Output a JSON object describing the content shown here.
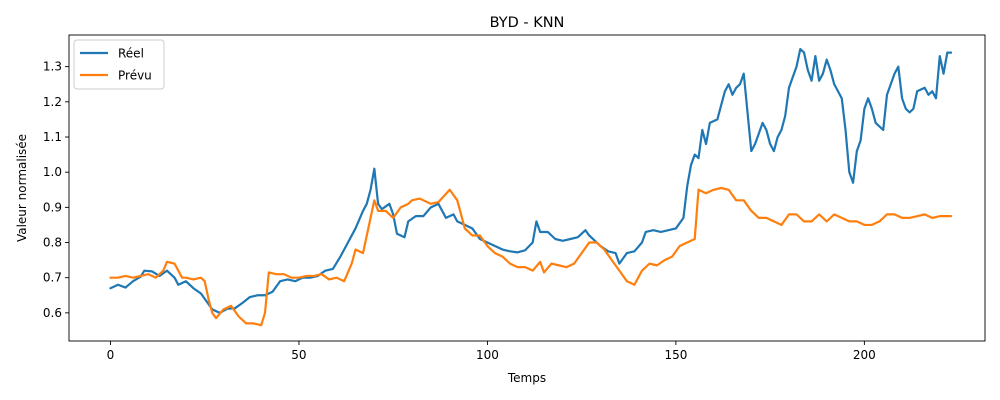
{
  "chart_data": {
    "type": "line",
    "title": "BYD - KNN",
    "xlabel": "Temps",
    "ylabel": "Valeur normalisée",
    "xlim": [
      -11,
      232
    ],
    "ylim": [
      0.52,
      1.39
    ],
    "xticks": [
      0,
      50,
      100,
      150,
      200
    ],
    "yticks": [
      0.6,
      0.7,
      0.8,
      0.9,
      1.0,
      1.1,
      1.2,
      1.3
    ],
    "ytick_labels": [
      "0.6",
      "0.7",
      "0.8",
      "0.9",
      "1.0",
      "1.1",
      "1.2",
      "1.3"
    ],
    "grid": false,
    "legend_position": "upper left",
    "series": [
      {
        "name": "Réel",
        "color": "#1f77b4",
        "points": [
          [
            0,
            0.67
          ],
          [
            2,
            0.68
          ],
          [
            4,
            0.672
          ],
          [
            6,
            0.69
          ],
          [
            8,
            0.703
          ],
          [
            9,
            0.72
          ],
          [
            11,
            0.718
          ],
          [
            13,
            0.705
          ],
          [
            15,
            0.72
          ],
          [
            17,
            0.7
          ],
          [
            18,
            0.68
          ],
          [
            20,
            0.69
          ],
          [
            22,
            0.67
          ],
          [
            24,
            0.655
          ],
          [
            25,
            0.64
          ],
          [
            27,
            0.61
          ],
          [
            29,
            0.6
          ],
          [
            31,
            0.612
          ],
          [
            33,
            0.613
          ],
          [
            35,
            0.628
          ],
          [
            37,
            0.645
          ],
          [
            39,
            0.65
          ],
          [
            41,
            0.65
          ],
          [
            43,
            0.66
          ],
          [
            45,
            0.69
          ],
          [
            47,
            0.695
          ],
          [
            49,
            0.69
          ],
          [
            51,
            0.7
          ],
          [
            53,
            0.7
          ],
          [
            55,
            0.705
          ],
          [
            57,
            0.72
          ],
          [
            59,
            0.725
          ],
          [
            61,
            0.76
          ],
          [
            63,
            0.8
          ],
          [
            65,
            0.84
          ],
          [
            67,
            0.89
          ],
          [
            68,
            0.91
          ],
          [
            69,
            0.95
          ],
          [
            70,
            1.01
          ],
          [
            71,
            0.91
          ],
          [
            72,
            0.895
          ],
          [
            74,
            0.91
          ],
          [
            75,
            0.88
          ],
          [
            76,
            0.825
          ],
          [
            78,
            0.815
          ],
          [
            79,
            0.86
          ],
          [
            81,
            0.875
          ],
          [
            83,
            0.875
          ],
          [
            85,
            0.9
          ],
          [
            87,
            0.91
          ],
          [
            89,
            0.87
          ],
          [
            91,
            0.88
          ],
          [
            92,
            0.86
          ],
          [
            94,
            0.85
          ],
          [
            96,
            0.84
          ],
          [
            98,
            0.81
          ],
          [
            100,
            0.8
          ],
          [
            102,
            0.79
          ],
          [
            104,
            0.78
          ],
          [
            106,
            0.775
          ],
          [
            108,
            0.772
          ],
          [
            110,
            0.778
          ],
          [
            112,
            0.8
          ],
          [
            113,
            0.86
          ],
          [
            114,
            0.83
          ],
          [
            116,
            0.83
          ],
          [
            118,
            0.81
          ],
          [
            120,
            0.805
          ],
          [
            122,
            0.81
          ],
          [
            124,
            0.815
          ],
          [
            126,
            0.835
          ],
          [
            127,
            0.82
          ],
          [
            129,
            0.8
          ],
          [
            130,
            0.79
          ],
          [
            132,
            0.775
          ],
          [
            134,
            0.77
          ],
          [
            135,
            0.74
          ],
          [
            137,
            0.77
          ],
          [
            139,
            0.775
          ],
          [
            141,
            0.8
          ],
          [
            142,
            0.83
          ],
          [
            144,
            0.835
          ],
          [
            146,
            0.83
          ],
          [
            148,
            0.835
          ],
          [
            150,
            0.84
          ],
          [
            152,
            0.87
          ],
          [
            153,
            0.96
          ],
          [
            154,
            1.02
          ],
          [
            155,
            1.05
          ],
          [
            156,
            1.04
          ],
          [
            157,
            1.12
          ],
          [
            158,
            1.08
          ],
          [
            159,
            1.14
          ],
          [
            161,
            1.15
          ],
          [
            162,
            1.19
          ],
          [
            163,
            1.23
          ],
          [
            164,
            1.25
          ],
          [
            165,
            1.22
          ],
          [
            166,
            1.24
          ],
          [
            167,
            1.25
          ],
          [
            168,
            1.28
          ],
          [
            170,
            1.06
          ],
          [
            171,
            1.08
          ],
          [
            172,
            1.11
          ],
          [
            173,
            1.14
          ],
          [
            174,
            1.12
          ],
          [
            175,
            1.08
          ],
          [
            176,
            1.06
          ],
          [
            177,
            1.1
          ],
          [
            178,
            1.12
          ],
          [
            179,
            1.16
          ],
          [
            180,
            1.24
          ],
          [
            182,
            1.3
          ],
          [
            183,
            1.35
          ],
          [
            184,
            1.34
          ],
          [
            185,
            1.29
          ],
          [
            186,
            1.26
          ],
          [
            187,
            1.33
          ],
          [
            188,
            1.26
          ],
          [
            189,
            1.28
          ],
          [
            190,
            1.32
          ],
          [
            191,
            1.29
          ],
          [
            192,
            1.25
          ],
          [
            193,
            1.23
          ],
          [
            194,
            1.21
          ],
          [
            195,
            1.12
          ],
          [
            196,
            1.0
          ],
          [
            197,
            0.97
          ],
          [
            198,
            1.06
          ],
          [
            199,
            1.09
          ],
          [
            200,
            1.18
          ],
          [
            201,
            1.21
          ],
          [
            202,
            1.18
          ],
          [
            203,
            1.14
          ],
          [
            204,
            1.13
          ],
          [
            205,
            1.12
          ],
          [
            206,
            1.22
          ],
          [
            207,
            1.25
          ],
          [
            208,
            1.28
          ],
          [
            209,
            1.3
          ],
          [
            210,
            1.21
          ],
          [
            211,
            1.18
          ],
          [
            212,
            1.17
          ],
          [
            213,
            1.18
          ],
          [
            214,
            1.23
          ],
          [
            216,
            1.24
          ],
          [
            217,
            1.22
          ],
          [
            218,
            1.23
          ],
          [
            219,
            1.21
          ],
          [
            220,
            1.33
          ],
          [
            221,
            1.28
          ],
          [
            222,
            1.34
          ],
          [
            223,
            1.34
          ]
        ]
      },
      {
        "name": "Prévu",
        "color": "#ff7f0e",
        "points": [
          [
            0,
            0.7
          ],
          [
            2,
            0.7
          ],
          [
            4,
            0.705
          ],
          [
            6,
            0.7
          ],
          [
            8,
            0.705
          ],
          [
            10,
            0.71
          ],
          [
            12,
            0.7
          ],
          [
            14,
            0.72
          ],
          [
            15,
            0.745
          ],
          [
            17,
            0.74
          ],
          [
            19,
            0.7
          ],
          [
            20,
            0.7
          ],
          [
            22,
            0.695
          ],
          [
            24,
            0.7
          ],
          [
            25,
            0.69
          ],
          [
            26,
            0.64
          ],
          [
            27,
            0.6
          ],
          [
            28,
            0.585
          ],
          [
            30,
            0.61
          ],
          [
            32,
            0.62
          ],
          [
            34,
            0.59
          ],
          [
            36,
            0.57
          ],
          [
            38,
            0.57
          ],
          [
            40,
            0.565
          ],
          [
            41,
            0.6
          ],
          [
            42,
            0.715
          ],
          [
            44,
            0.71
          ],
          [
            46,
            0.71
          ],
          [
            48,
            0.7
          ],
          [
            50,
            0.7
          ],
          [
            52,
            0.705
          ],
          [
            54,
            0.705
          ],
          [
            56,
            0.71
          ],
          [
            58,
            0.695
          ],
          [
            60,
            0.7
          ],
          [
            62,
            0.69
          ],
          [
            64,
            0.74
          ],
          [
            65,
            0.78
          ],
          [
            67,
            0.77
          ],
          [
            68,
            0.82
          ],
          [
            70,
            0.92
          ],
          [
            71,
            0.89
          ],
          [
            73,
            0.89
          ],
          [
            75,
            0.87
          ],
          [
            77,
            0.9
          ],
          [
            79,
            0.91
          ],
          [
            80,
            0.92
          ],
          [
            82,
            0.925
          ],
          [
            83,
            0.92
          ],
          [
            85,
            0.91
          ],
          [
            87,
            0.915
          ],
          [
            90,
            0.95
          ],
          [
            92,
            0.92
          ],
          [
            94,
            0.84
          ],
          [
            96,
            0.82
          ],
          [
            98,
            0.82
          ],
          [
            100,
            0.79
          ],
          [
            102,
            0.77
          ],
          [
            104,
            0.76
          ],
          [
            106,
            0.74
          ],
          [
            108,
            0.73
          ],
          [
            110,
            0.73
          ],
          [
            112,
            0.72
          ],
          [
            114,
            0.745
          ],
          [
            115,
            0.715
          ],
          [
            117,
            0.74
          ],
          [
            119,
            0.735
          ],
          [
            121,
            0.73
          ],
          [
            123,
            0.74
          ],
          [
            125,
            0.77
          ],
          [
            127,
            0.8
          ],
          [
            129,
            0.8
          ],
          [
            131,
            0.78
          ],
          [
            133,
            0.75
          ],
          [
            135,
            0.72
          ],
          [
            137,
            0.69
          ],
          [
            139,
            0.68
          ],
          [
            141,
            0.72
          ],
          [
            143,
            0.74
          ],
          [
            145,
            0.735
          ],
          [
            147,
            0.75
          ],
          [
            149,
            0.76
          ],
          [
            151,
            0.79
          ],
          [
            153,
            0.8
          ],
          [
            155,
            0.81
          ],
          [
            156,
            0.95
          ],
          [
            158,
            0.94
          ],
          [
            160,
            0.95
          ],
          [
            162,
            0.955
          ],
          [
            164,
            0.95
          ],
          [
            166,
            0.92
          ],
          [
            168,
            0.92
          ],
          [
            170,
            0.89
          ],
          [
            172,
            0.87
          ],
          [
            174,
            0.87
          ],
          [
            176,
            0.86
          ],
          [
            178,
            0.85
          ],
          [
            180,
            0.88
          ],
          [
            182,
            0.88
          ],
          [
            184,
            0.86
          ],
          [
            186,
            0.86
          ],
          [
            188,
            0.88
          ],
          [
            190,
            0.86
          ],
          [
            192,
            0.88
          ],
          [
            194,
            0.87
          ],
          [
            196,
            0.86
          ],
          [
            198,
            0.86
          ],
          [
            200,
            0.85
          ],
          [
            202,
            0.85
          ],
          [
            204,
            0.86
          ],
          [
            206,
            0.88
          ],
          [
            208,
            0.88
          ],
          [
            210,
            0.87
          ],
          [
            212,
            0.87
          ],
          [
            214,
            0.875
          ],
          [
            216,
            0.88
          ],
          [
            218,
            0.87
          ],
          [
            220,
            0.875
          ],
          [
            223,
            0.875
          ]
        ]
      }
    ]
  }
}
